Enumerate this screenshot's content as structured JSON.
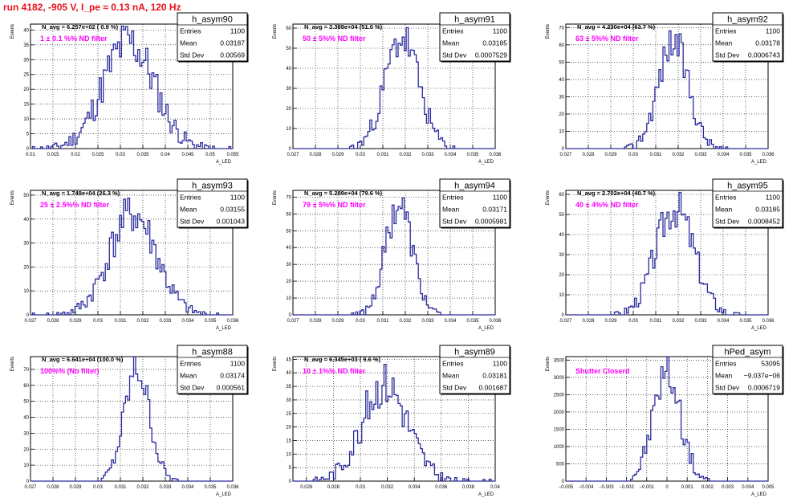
{
  "run_title": "run 4182,  -905 V, I_pe ≈ 0.13 nA, 120 Hz",
  "colors": {
    "histogram": "#2b2b9e",
    "annotation": "#ff00ff",
    "title": "#e8101c"
  },
  "stats_labels": [
    "Entries",
    "Mean",
    "Std Dev"
  ],
  "chart_data": [
    {
      "type": "bar",
      "name": "h_asym90",
      "navg": "N_avg = 6.257e+02 ( 0.9 %)",
      "note": "1 ± 0.1 %% ND filter",
      "entries": "1100",
      "mean": "0.03187",
      "std": "0.00569",
      "xlabel": "A_LED",
      "ylabel": "Events",
      "xlim": [
        0.01,
        0.055
      ],
      "ylim": [
        0,
        42
      ],
      "grid": true,
      "xticks": [
        "0.01",
        "0.015",
        "0.02",
        "0.025",
        "0.03",
        "0.035",
        "0.04",
        "0.045",
        "0.05",
        "0.055"
      ],
      "yticks": [
        "0",
        "5",
        "10",
        "15",
        "20",
        "25",
        "30",
        "35",
        "40"
      ],
      "center": 0.03187,
      "sigma": 0.00569,
      "peak": 36,
      "seed": 11
    },
    {
      "type": "bar",
      "name": "h_asym91",
      "navg": "N_avg = 3.389e+04 (51.0 %)",
      "note": "50 ± 5%% ND filter",
      "entries": "1100",
      "mean": "0.03185",
      "std": "0.0007529",
      "xlabel": "A_LED",
      "ylabel": "Events",
      "xlim": [
        0.027,
        0.036
      ],
      "ylim": [
        0,
        62
      ],
      "grid": true,
      "xticks": [
        "0.027",
        "0.028",
        "0.029",
        "0.03",
        "0.031",
        "0.032",
        "0.033",
        "0.034",
        "0.035",
        "0.036"
      ],
      "yticks": [
        "0",
        "10",
        "20",
        "30",
        "40",
        "50",
        "60"
      ],
      "center": 0.03185,
      "sigma": 0.0007529,
      "peak": 55,
      "seed": 23
    },
    {
      "type": "bar",
      "name": "h_asym92",
      "navg": "N_avg = 4.230e+04 (63.7 %)",
      "note": "63 ± 5%% ND filter",
      "entries": "1100",
      "mean": "0.03178",
      "std": "0.0006743",
      "xlabel": "A_LED",
      "ylabel": "Events",
      "xlim": [
        0.027,
        0.036
      ],
      "ylim": [
        0,
        72
      ],
      "grid": true,
      "xticks": [
        "0.027",
        "0.028",
        "0.029",
        "0.03",
        "0.031",
        "0.032",
        "0.033",
        "0.034",
        "0.035",
        "0.036"
      ],
      "yticks": [
        "0",
        "10",
        "20",
        "30",
        "40",
        "50",
        "60",
        "70"
      ],
      "center": 0.03178,
      "sigma": 0.0006743,
      "peak": 62,
      "seed": 37
    },
    {
      "type": "bar",
      "name": "h_asym93",
      "navg": "N_avg = 1.749e+04 (26.3 %)",
      "note": "25 ± 2.5%% ND filter",
      "entries": "1100",
      "mean": "0.03155",
      "std": "0.001043",
      "xlabel": "A_LED",
      "ylabel": "Events",
      "xlim": [
        0.027,
        0.036
      ],
      "ylim": [
        0,
        52
      ],
      "grid": true,
      "xticks": [
        "0.027",
        "0.028",
        "0.029",
        "0.03",
        "0.031",
        "0.032",
        "0.033",
        "0.034",
        "0.035",
        "0.036"
      ],
      "yticks": [
        "0",
        "10",
        "20",
        "30",
        "40",
        "50"
      ],
      "center": 0.03155,
      "sigma": 0.001043,
      "peak": 42,
      "seed": 41
    },
    {
      "type": "bar",
      "name": "h_asym94",
      "navg": "N_avg = 5.289e+04 (79.6 %)",
      "note": "79 ± 5%% ND filter",
      "entries": "1100",
      "mean": "0.03171",
      "std": "0.0005981",
      "xlabel": "A_LED",
      "ylabel": "Events",
      "xlim": [
        0.027,
        0.036
      ],
      "ylim": [
        0,
        74
      ],
      "grid": true,
      "xticks": [
        "0.027",
        "0.028",
        "0.029",
        "0.03",
        "0.031",
        "0.032",
        "0.033",
        "0.034",
        "0.035",
        "0.036"
      ],
      "yticks": [
        "0",
        "10",
        "20",
        "30",
        "40",
        "50",
        "60",
        "70"
      ],
      "center": 0.03171,
      "sigma": 0.0005981,
      "peak": 66,
      "seed": 53
    },
    {
      "type": "bar",
      "name": "h_asym95",
      "navg": "N_avg = 2.702e+04 (40.7 %)",
      "note": "40 ± 4%% ND filter",
      "entries": "1100",
      "mean": "0.03185",
      "std": "0.0008452",
      "xlabel": "A_LED",
      "ylabel": "Events",
      "xlim": [
        0.027,
        0.036
      ],
      "ylim": [
        0,
        62
      ],
      "grid": true,
      "xticks": [
        "0.027",
        "0.028",
        "0.029",
        "0.03",
        "0.031",
        "0.032",
        "0.033",
        "0.034",
        "0.035",
        "0.036"
      ],
      "yticks": [
        "0",
        "10",
        "20",
        "30",
        "40",
        "50",
        "60"
      ],
      "center": 0.03185,
      "sigma": 0.0008452,
      "peak": 54,
      "seed": 67
    },
    {
      "type": "bar",
      "name": "h_asym88",
      "navg": "N_avg = 6.641e+04 (100.0 %)",
      "note": "100%% (No filter)",
      "entries": "1100",
      "mean": "0.03174",
      "std": "0.000561",
      "xlabel": "A_LED",
      "ylabel": "Events",
      "xlim": [
        0.027,
        0.036
      ],
      "ylim": [
        0,
        78
      ],
      "grid": true,
      "xticks": [
        "0.027",
        "0.028",
        "0.029",
        "0.03",
        "0.031",
        "0.032",
        "0.033",
        "0.034",
        "0.035",
        "0.036"
      ],
      "yticks": [
        "0",
        "10",
        "20",
        "30",
        "40",
        "50",
        "60",
        "70"
      ],
      "center": 0.03174,
      "sigma": 0.000561,
      "peak": 70,
      "seed": 79
    },
    {
      "type": "bar",
      "name": "h_asym89",
      "navg": "N_avg = 6.345e+03 ( 9.6 %)",
      "note": "10 ± 1%% ND filter",
      "entries": "1100",
      "mean": "0.03181",
      "std": "0.001687",
      "xlabel": "A_LED",
      "ylabel": "Events",
      "xlim": [
        0.025,
        0.04
      ],
      "ylim": [
        0,
        46
      ],
      "grid": true,
      "xticks": [
        "0.026",
        "0.028",
        "0.03",
        "0.032",
        "0.034",
        "0.036",
        "0.038",
        "0.04"
      ],
      "xtick_values": [
        0.026,
        0.028,
        0.03,
        0.032,
        0.034,
        0.036,
        0.038,
        0.04
      ],
      "yticks": [
        "0",
        "5",
        "10",
        "15",
        "20",
        "25",
        "30",
        "35",
        "40",
        "45"
      ],
      "center": 0.03181,
      "sigma": 0.001687,
      "peak": 36,
      "seed": 83
    },
    {
      "type": "bar",
      "name": "hPed_asym",
      "navg": "",
      "note": "Shutter Closerd",
      "entries": "53095",
      "mean": "−9.037e−06",
      "std": "0.0006719",
      "xlabel": "A_LED",
      "ylabel": "Events",
      "xlim": [
        -0.005,
        0.005
      ],
      "ylim": [
        0,
        3600
      ],
      "grid": true,
      "xticks": [
        "−0.005",
        "−0.004",
        "−0.003",
        "−0.002",
        "−0.001",
        "0",
        "0.001",
        "0.002",
        "0.003",
        "0.004",
        "0.005"
      ],
      "yticks": [
        "0",
        "500",
        "1000",
        "1500",
        "2000",
        "2500",
        "3000",
        "3500"
      ],
      "center": -9.037e-06,
      "sigma": 0.0006719,
      "peak": 3150,
      "seed": 97
    }
  ]
}
